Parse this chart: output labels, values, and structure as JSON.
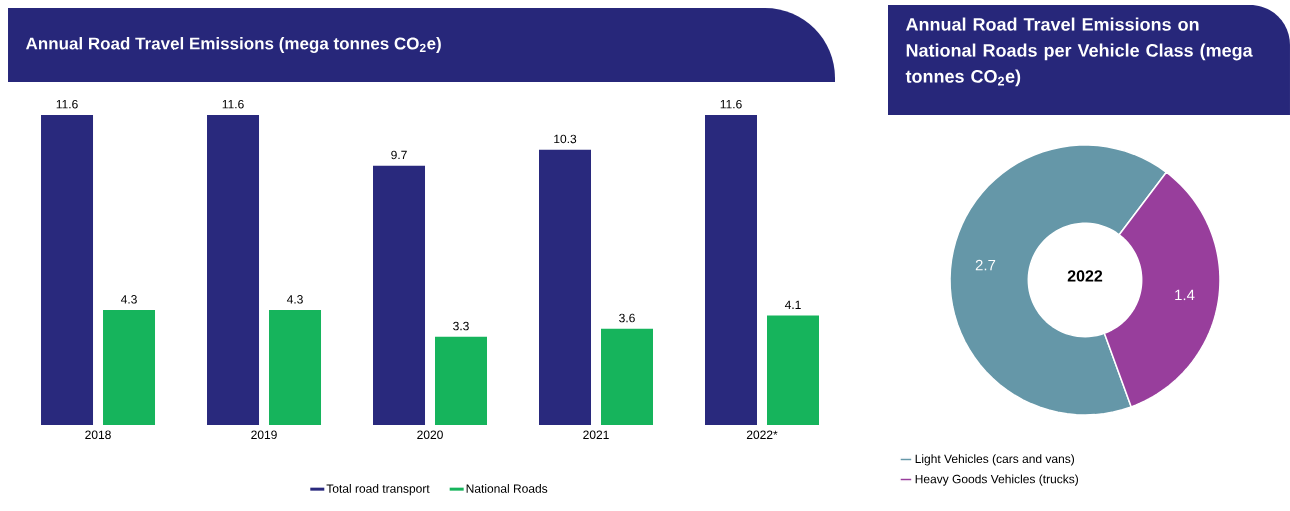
{
  "chart_data": [
    {
      "type": "bar",
      "title": "Annual Road Travel Emissions (mega tonnes CO$_{2}$e)",
      "categories": [
        "2018",
        "2019",
        "2020",
        "2021",
        "2022*"
      ],
      "series": [
        {
          "name": "Total road transport",
          "color": "#29297d",
          "values": [
            11.6,
            11.6,
            9.7,
            10.3,
            11.6
          ]
        },
        {
          "name": "National Roads",
          "color": "#16b45c",
          "values": [
            4.3,
            4.3,
            3.3,
            3.6,
            4.1
          ]
        }
      ],
      "data_labels": true,
      "legend": "bottom"
    },
    {
      "type": "donut",
      "title": "Annual Road Travel Emissions on National Roads per Vehicle Class (mega tonnes CO$_{2}$e)",
      "categories": [
        "Light Vehicles (cars and vans)",
        "Heavy Goods Vehicles (trucks)"
      ],
      "values": [
        2.7,
        1.4
      ],
      "colors": [
        "#6597a8",
        "#983e9c"
      ],
      "data_labels": true,
      "annotations": [
        "2022"
      ],
      "legend": "bottom left"
    }
  ]
}
